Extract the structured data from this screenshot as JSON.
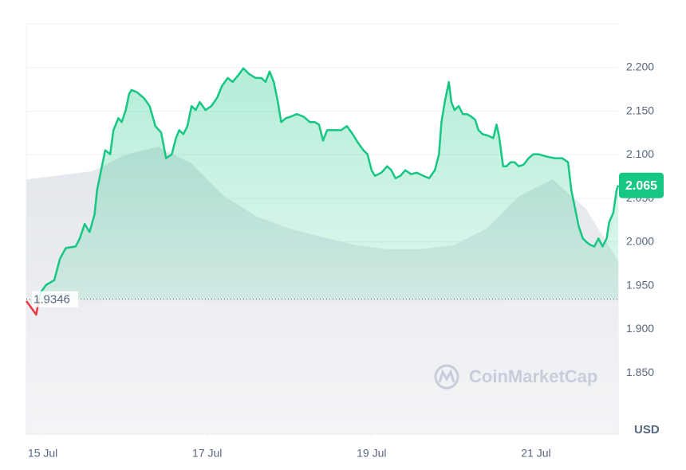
{
  "chart_data": {
    "type": "line",
    "grid": true,
    "xlim": [
      14.8,
      22.0
    ],
    "xticks": [
      {
        "value": 15,
        "label": "15 Jul"
      },
      {
        "value": 17,
        "label": "17 Jul"
      },
      {
        "value": 19,
        "label": "19 Jul"
      },
      {
        "value": 21,
        "label": "21 Jul"
      }
    ],
    "ylim": [
      1.78,
      2.25
    ],
    "yticks": [
      {
        "value": 2.2,
        "label": "2.200"
      },
      {
        "value": 2.15,
        "label": "2.150"
      },
      {
        "value": 2.1,
        "label": "2.100"
      },
      {
        "value": 2.05,
        "label": "2.050"
      },
      {
        "value": 2.0,
        "label": "2.000"
      },
      {
        "value": 1.95,
        "label": "1.950"
      },
      {
        "value": 1.9,
        "label": "1.900"
      },
      {
        "value": 1.85,
        "label": "1.850"
      }
    ],
    "y2lim": [
      0,
      100
    ],
    "ylabel": "USD",
    "reference_line": {
      "value": 1.9346,
      "label": "1.9346"
    },
    "current_price": {
      "value": 2.065,
      "label": "2.065",
      "color": "#16c784"
    },
    "watermark": "CoinMarketCap",
    "series": [
      {
        "color": "#16c784",
        "color_below": "#ea3943",
        "x": [
          14.8,
          14.85,
          14.92,
          14.97,
          15.04,
          15.14,
          15.21,
          15.28,
          15.4,
          15.45,
          15.51,
          15.57,
          15.63,
          15.66,
          15.72,
          15.76,
          15.82,
          15.86,
          15.92,
          15.96,
          16.01,
          16.05,
          16.08,
          16.15,
          16.23,
          16.3,
          16.37,
          16.44,
          16.5,
          16.57,
          16.62,
          16.66,
          16.71,
          16.76,
          16.81,
          16.86,
          16.91,
          16.98,
          17.05,
          17.12,
          17.18,
          17.25,
          17.31,
          17.39,
          17.44,
          17.51,
          17.59,
          17.66,
          17.71,
          17.76,
          17.81,
          17.86,
          17.9,
          17.96,
          18.02,
          18.09,
          18.17,
          18.25,
          18.31,
          18.36,
          18.41,
          18.46,
          18.54,
          18.63,
          18.7,
          18.77,
          18.83,
          18.9,
          18.95,
          19.0,
          19.04,
          19.12,
          19.19,
          19.24,
          19.29,
          19.35,
          19.41,
          19.48,
          19.55,
          19.63,
          19.7,
          19.77,
          19.82,
          19.85,
          19.89,
          19.94,
          19.97,
          20.01,
          20.06,
          20.11,
          20.16,
          20.21,
          20.26,
          20.3,
          20.35,
          20.42,
          20.48,
          20.52,
          20.55,
          20.6,
          20.64,
          20.69,
          20.74,
          20.79,
          20.85,
          20.91,
          20.97,
          21.03,
          21.13,
          21.23,
          21.32,
          21.39,
          21.43,
          21.47,
          21.52,
          21.57,
          21.62,
          21.66,
          21.71,
          21.76,
          21.81,
          21.86,
          21.89,
          21.94,
          21.98,
          22.0
        ],
        "values": [
          1.9325,
          1.9261,
          1.9169,
          1.9417,
          1.9509,
          1.9564,
          1.9812,
          1.9932,
          1.995,
          2.0042,
          2.0208,
          2.0116,
          2.0318,
          2.0594,
          2.0869,
          2.1053,
          2.1007,
          2.1283,
          2.1421,
          2.1375,
          2.1513,
          2.1697,
          2.1743,
          2.1715,
          2.1651,
          2.1559,
          2.1329,
          2.1256,
          2.0961,
          2.1007,
          2.1191,
          2.1283,
          2.1237,
          2.1329,
          2.1559,
          2.1513,
          2.1605,
          2.1513,
          2.1559,
          2.1651,
          2.1789,
          2.1881,
          2.1835,
          2.1926,
          2.1991,
          2.1926,
          2.1881,
          2.1881,
          2.1835,
          2.1954,
          2.1835,
          2.1605,
          2.1375,
          2.1421,
          2.1439,
          2.1467,
          2.1439,
          2.1375,
          2.1375,
          2.1347,
          2.1164,
          2.1283,
          2.1283,
          2.1283,
          2.1329,
          2.1237,
          2.1145,
          2.1053,
          2.1007,
          2.0824,
          2.0759,
          2.0796,
          2.0869,
          2.0824,
          2.0732,
          2.0759,
          2.0824,
          2.0778,
          2.0796,
          2.0759,
          2.0732,
          2.0824,
          2.1007,
          2.1375,
          2.1605,
          2.1835,
          2.1605,
          2.1513,
          2.1559,
          2.1467,
          2.1467,
          2.1439,
          2.1403,
          2.1283,
          2.1237,
          2.1219,
          2.1191,
          2.1347,
          2.1219,
          2.0869,
          2.0869,
          2.0915,
          2.0915,
          2.0869,
          2.0888,
          2.0961,
          2.1007,
          2.1007,
          2.098,
          2.0961,
          2.0961,
          2.0915,
          2.0594,
          2.041,
          2.018,
          2.0042,
          1.9996,
          1.9969,
          1.995,
          2.0042,
          1.995,
          2.0042,
          2.0226,
          2.0336,
          2.0594,
          2.065
        ]
      },
      {
        "color": "#e9ebef",
        "axis": "y2",
        "x": [
          14.8,
          15.2,
          15.6,
          16.0,
          16.4,
          16.8,
          17.2,
          17.6,
          18.0,
          18.4,
          18.8,
          19.2,
          19.6,
          20.0,
          20.4,
          20.8,
          21.2,
          21.6,
          22.0
        ],
        "values": [
          62,
          63,
          64,
          68,
          70,
          66,
          58,
          53,
          50,
          48,
          46,
          45,
          45,
          46,
          50,
          58,
          62,
          55,
          42
        ]
      }
    ]
  }
}
